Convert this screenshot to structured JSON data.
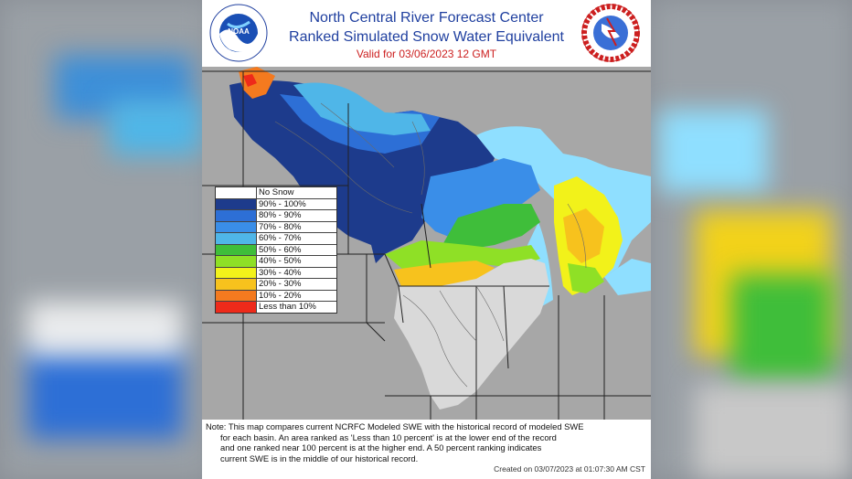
{
  "header": {
    "title_line1": "North Central River Forecast Center",
    "title_line2": "Ranked Simulated Snow Water Equivalent",
    "valid_line": "Valid for 03/06/2023 12 GMT",
    "title_color": "#1f3f9f",
    "valid_color": "#cc1f1f"
  },
  "logos": {
    "left": {
      "icon": "noaa-logo-icon",
      "text": "NOAA",
      "ring_text": "NATIONAL OCEANIC AND ATMOSPHERIC ADMINISTRATION · U.S. DEPARTMENT OF COMMERCE"
    },
    "right": {
      "icon": "national-weather-service-logo-icon",
      "ring_text": "NATIONAL WEATHER SERVICE"
    }
  },
  "legend": {
    "items": [
      {
        "label": "No Snow",
        "color": "#ffffff"
      },
      {
        "label": "90% - 100%",
        "color": "#1d3b8c"
      },
      {
        "label": "80% - 90%",
        "color": "#2d6fd6"
      },
      {
        "label": "70% - 80%",
        "color": "#3a8ee8"
      },
      {
        "label": "60% - 70%",
        "color": "#4fb6e8"
      },
      {
        "label": "50% - 60%",
        "color": "#3fbe3a"
      },
      {
        "label": "40% - 50%",
        "color": "#8fe026"
      },
      {
        "label": "30% - 40%",
        "color": "#f2f21a"
      },
      {
        "label": "20% - 30%",
        "color": "#f7c21d"
      },
      {
        "label": "10% - 20%",
        "color": "#f47a1f"
      },
      {
        "label": "Less than 10%",
        "color": "#ee2a1a"
      }
    ]
  },
  "note": {
    "lines": [
      "Note: This map compares current NCRFC Modeled SWE with the historical record of modeled SWE",
      "       for each basin. An area ranked as 'Less than 10 percent' is at the lower end of the record",
      "       and one ranked near 100 percent is at the higher end.  A 50 percent ranking indicates",
      "       current SWE is in the middle of our historical record."
    ],
    "created": "Created on 03/07/2023 at 01:07:30 AM CST"
  },
  "map_colors": {
    "land_gray": "#a7a7a7",
    "no_snow": "#d9d9d9",
    "lakes": "#8fdfff",
    "borders": "#222222"
  }
}
